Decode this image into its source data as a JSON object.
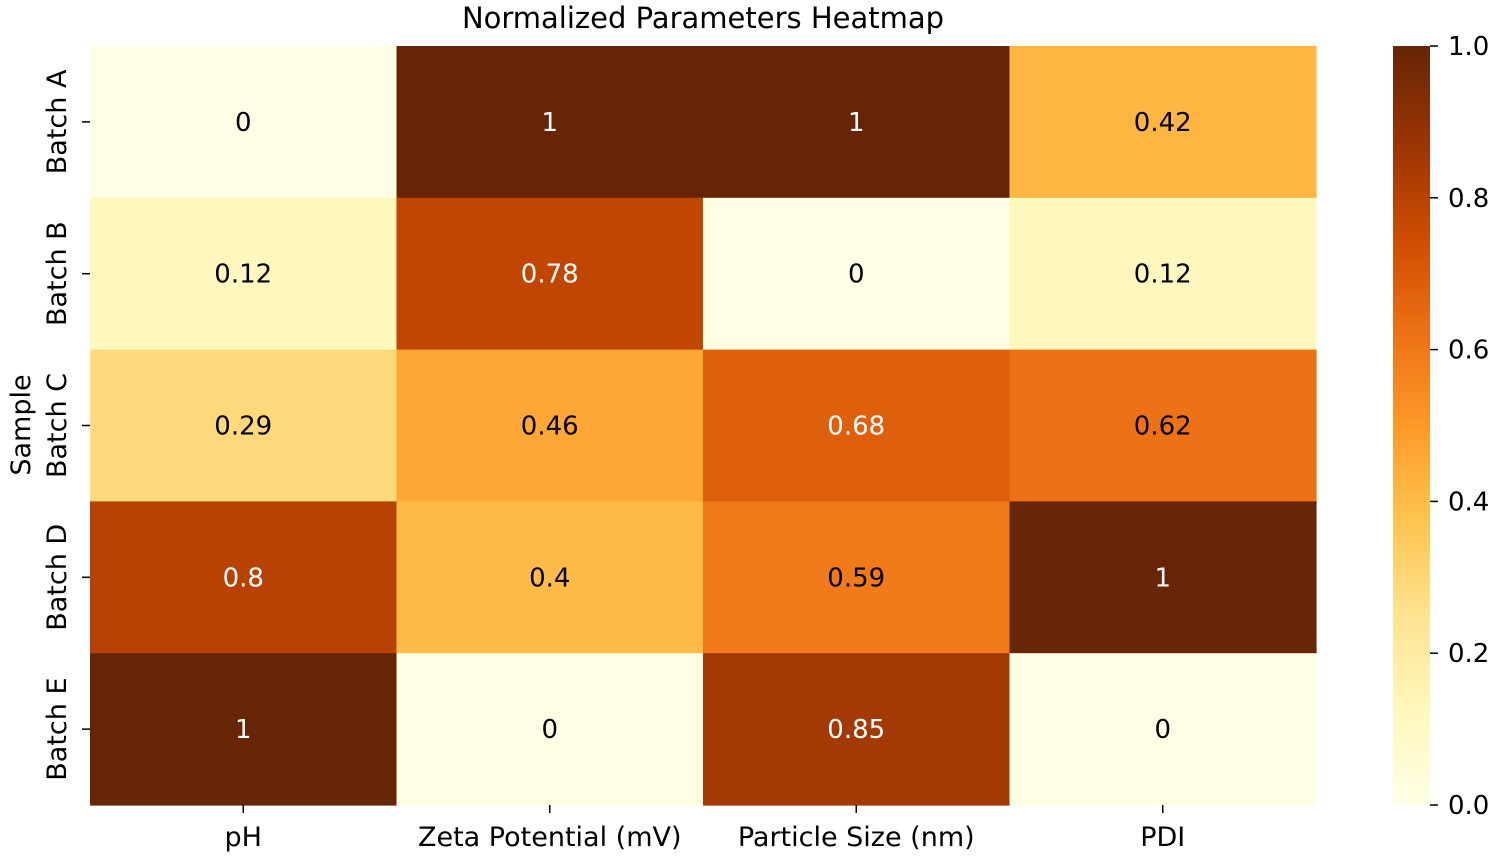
{
  "chart_data": {
    "type": "heatmap",
    "title": "Normalized Parameters Heatmap",
    "xlabel": "",
    "ylabel": "Sample",
    "columns": [
      "pH",
      "Zeta Potential (mV)",
      "Particle Size (nm)",
      "PDI"
    ],
    "rows": [
      "Batch A",
      "Batch B",
      "Batch C",
      "Batch D",
      "Batch E"
    ],
    "values": [
      [
        0,
        1,
        1,
        0.42
      ],
      [
        0.12,
        0.78,
        0,
        0.12
      ],
      [
        0.29,
        0.46,
        0.68,
        0.62
      ],
      [
        0.8,
        0.4,
        0.59,
        1
      ],
      [
        1,
        0,
        0.85,
        0
      ]
    ],
    "annotations": [
      [
        "0",
        "1",
        "1",
        "0.42"
      ],
      [
        "0.12",
        "0.78",
        "0",
        "0.12"
      ],
      [
        "0.29",
        "0.46",
        "0.68",
        "0.62"
      ],
      [
        "0.8",
        "0.4",
        "0.59",
        "1"
      ],
      [
        "1",
        "0",
        "0.85",
        "0"
      ]
    ],
    "colorbar": {
      "range": [
        0.0,
        1.0
      ],
      "ticks": [
        0.0,
        0.2,
        0.4,
        0.6,
        0.8,
        1.0
      ],
      "tick_labels": [
        "0.0",
        "0.2",
        "0.4",
        "0.6",
        "0.8",
        "1.0"
      ]
    },
    "colormap": {
      "name": "YlOrBr",
      "stops": [
        "#ffffe5",
        "#fff7bc",
        "#fee391",
        "#fec44f",
        "#fe9929",
        "#ec7014",
        "#cc4c02",
        "#993404",
        "#662506"
      ]
    },
    "grid": false,
    "legend": "right"
  }
}
